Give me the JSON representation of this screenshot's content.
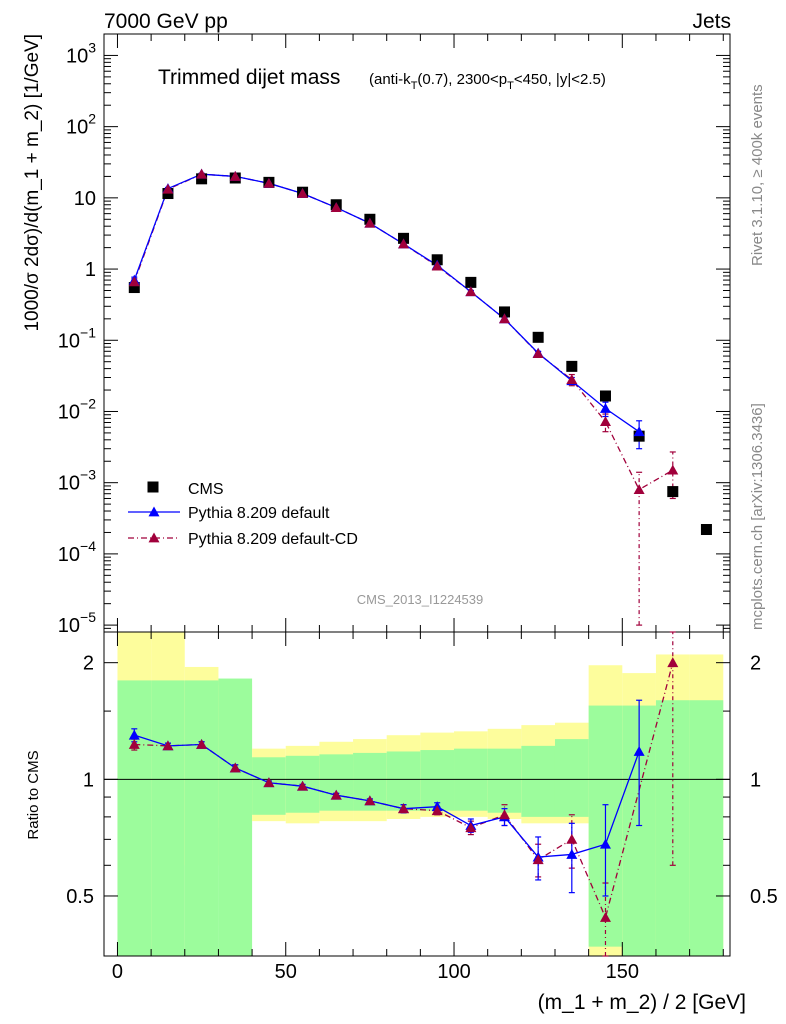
{
  "header": {
    "left": "7000 GeV pp",
    "right": "Jets"
  },
  "side_labels": {
    "rivet": "Rivet 3.1.10, ≥ 400k events",
    "mcplots": "mcplots.cern.ch [arXiv:1306.3436]"
  },
  "chart_data": {
    "type": "scatter",
    "title": "Trimmed dijet mass",
    "title_detail": "(anti-k_T(0.7), 2300<p_T<450, |y|<2.5)",
    "analysis_label": "CMS_2013_I1224539",
    "xlabel": "(m_1 + m_2) / 2 [GeV]",
    "ylabel": "1000/σ 2dσ)/d(m_1 + m_2) [1/GeV]",
    "ratio_ylabel": "Ratio to CMS",
    "xlim": [
      -4,
      182
    ],
    "ylim": [
      8e-06,
      2000
    ],
    "yscale": "log",
    "ratio_ylim": [
      0.35,
      2.4
    ],
    "x_ticks": [
      "0",
      "50",
      "100",
      "150"
    ],
    "x_tick_values": [
      0,
      50,
      100,
      150
    ],
    "y_ticks": [
      {
        "v": 1e-05,
        "base": "10",
        "exp": "−5"
      },
      {
        "v": 0.0001,
        "base": "10",
        "exp": "−4"
      },
      {
        "v": 0.001,
        "base": "10",
        "exp": "−3"
      },
      {
        "v": 0.01,
        "base": "10",
        "exp": "−2"
      },
      {
        "v": 0.1,
        "base": "10",
        "exp": "−1"
      },
      {
        "v": 1,
        "base": "1",
        "exp": ""
      },
      {
        "v": 10,
        "base": "10",
        "exp": ""
      },
      {
        "v": 100,
        "base": "10",
        "exp": "2"
      },
      {
        "v": 1000,
        "base": "10",
        "exp": "3"
      }
    ],
    "ratio_ticks": [
      "0.5",
      "1",
      "2"
    ],
    "ratio_tick_values": [
      0.5,
      1,
      2
    ],
    "legend_position": "lower-left",
    "colors": {
      "data": "#000000",
      "default": "#0000ff",
      "cd": "#a1003b",
      "band_inner": "#9cfc9c",
      "band_outer": "#fdfd9c"
    },
    "cms": {
      "name": "CMS",
      "x": [
        5,
        15,
        25,
        35,
        45,
        55,
        65,
        75,
        85,
        95,
        105,
        115,
        125,
        135,
        145,
        155,
        165,
        175
      ],
      "y": [
        0.55,
        11.5,
        18.5,
        19.0,
        16.5,
        12.0,
        8.0,
        5.0,
        2.7,
        1.35,
        0.65,
        0.25,
        0.11,
        0.043,
        0.0165,
        0.0045,
        0.00075,
        0.00022
      ]
    },
    "series": [
      {
        "name": "Pythia 8.209 default",
        "x": [
          5,
          15,
          25,
          35,
          45,
          55,
          65,
          75,
          85,
          95,
          105,
          115,
          125,
          135,
          145,
          155
        ],
        "y": [
          0.7,
          13.5,
          21.5,
          20.0,
          16.0,
          11.5,
          7.3,
          4.4,
          2.25,
          1.13,
          0.48,
          0.2,
          0.066,
          0.027,
          0.011,
          0.0052
        ],
        "err_low": [
          0.07,
          0.5,
          0.6,
          0.5,
          0.4,
          0.3,
          0.2,
          0.12,
          0.06,
          0.04,
          0.02,
          0.009,
          0.004,
          0.003,
          0.0025,
          0.0022
        ],
        "err_high": [
          0.07,
          0.5,
          0.6,
          0.5,
          0.4,
          0.3,
          0.2,
          0.12,
          0.06,
          0.04,
          0.02,
          0.009,
          0.004,
          0.003,
          0.0025,
          0.0022
        ]
      },
      {
        "name": "Pythia 8.209 default-CD",
        "x": [
          5,
          15,
          25,
          35,
          45,
          55,
          65,
          75,
          85,
          95,
          105,
          115,
          125,
          135,
          145,
          155,
          165
        ],
        "y": [
          0.66,
          13.2,
          21.5,
          20.0,
          16.0,
          11.5,
          7.3,
          4.4,
          2.25,
          1.1,
          0.48,
          0.2,
          0.065,
          0.028,
          0.0072,
          0.0008,
          0.0015
        ],
        "err_low": [
          0.07,
          0.5,
          0.6,
          0.5,
          0.4,
          0.3,
          0.2,
          0.12,
          0.06,
          0.04,
          0.02,
          0.009,
          0.004,
          0.005,
          0.002,
          0.00079,
          0.0009
        ],
        "err_high": [
          0.07,
          0.5,
          0.6,
          0.5,
          0.4,
          0.3,
          0.2,
          0.12,
          0.06,
          0.04,
          0.02,
          0.009,
          0.004,
          0.005,
          0.002,
          0.0006,
          0.0012
        ]
      }
    ],
    "ratio": {
      "default": {
        "x": [
          5,
          15,
          25,
          35,
          45,
          55,
          65,
          75,
          85,
          95,
          105,
          115,
          125,
          135,
          145,
          155
        ],
        "y": [
          1.3,
          1.22,
          1.23,
          1.07,
          0.98,
          0.96,
          0.91,
          0.88,
          0.84,
          0.85,
          0.76,
          0.8,
          0.63,
          0.64,
          0.68,
          1.18
        ],
        "err": [
          0.05,
          0.02,
          0.02,
          0.02,
          0.01,
          0.01,
          0.01,
          0.01,
          0.02,
          0.02,
          0.03,
          0.04,
          0.08,
          0.13,
          0.18,
          0.42
        ]
      },
      "cd": {
        "x": [
          5,
          15,
          25,
          35,
          45,
          55,
          65,
          75,
          85,
          95,
          105,
          115,
          125,
          135,
          145,
          165
        ],
        "y": [
          1.23,
          1.22,
          1.23,
          1.07,
          0.98,
          0.96,
          0.91,
          0.88,
          0.84,
          0.83,
          0.75,
          0.81,
          0.62,
          0.7,
          0.44,
          2.0
        ],
        "err": [
          0.04,
          0.02,
          0.02,
          0.02,
          0.01,
          0.01,
          0.01,
          0.01,
          0.02,
          0.02,
          0.03,
          0.05,
          0.06,
          0.11,
          0.1,
          1.4
        ]
      },
      "bands": {
        "edges": [
          0,
          10,
          20,
          30,
          40,
          50,
          60,
          70,
          80,
          90,
          100,
          110,
          120,
          130,
          140,
          150,
          160,
          170,
          180
        ],
        "inner_low": [
          0.2,
          0.2,
          0.2,
          0.2,
          0.81,
          0.82,
          0.83,
          0.83,
          0.83,
          0.83,
          0.83,
          0.82,
          0.8,
          0.8,
          0.37,
          0.3,
          0.3,
          0.25,
          0.25
        ],
        "inner_high": [
          1.8,
          1.8,
          1.8,
          1.82,
          1.14,
          1.15,
          1.16,
          1.17,
          1.18,
          1.19,
          1.2,
          1.2,
          1.22,
          1.27,
          1.55,
          1.55,
          1.6,
          1.6,
          1.6
        ],
        "outer_low": [
          0.2,
          0.2,
          0.6,
          0.75,
          0.78,
          0.77,
          0.78,
          0.78,
          0.79,
          0.8,
          0.8,
          0.79,
          0.77,
          0.77,
          0.3,
          0.3,
          0.3,
          0.3,
          0.3
        ],
        "outer_high": [
          2.5,
          2.5,
          1.95,
          1.75,
          1.2,
          1.22,
          1.25,
          1.27,
          1.3,
          1.32,
          1.33,
          1.35,
          1.38,
          1.4,
          1.97,
          1.88,
          2.1,
          2.1,
          2.1
        ]
      }
    }
  }
}
